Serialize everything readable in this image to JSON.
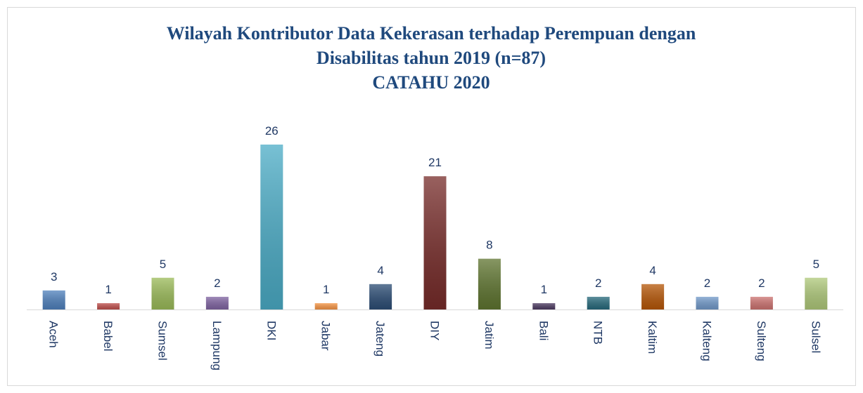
{
  "chart_data": {
    "type": "bar",
    "title": [
      "Wilayah Kontributor Data Kekerasan terhadap Perempuan dengan",
      "Disabilitas tahun 2019 (n=87)",
      "CATAHU 2020"
    ],
    "categories": [
      "Aceh",
      "Babel",
      "Sumsel",
      "Lampung",
      "DKI",
      "Jabar",
      "Jateng",
      "DIY",
      "Jatim",
      "Bali",
      "NTB",
      "Kaltim",
      "Kalteng",
      "Sulteng",
      "Sulsel"
    ],
    "values": [
      3,
      1,
      5,
      2,
      26,
      1,
      4,
      21,
      8,
      1,
      2,
      4,
      2,
      2,
      5
    ],
    "colors": [
      "#4f81bd",
      "#c0504d",
      "#9bbb59",
      "#8064a2",
      "#4bacc6",
      "#f79646",
      "#2c4d75",
      "#772c2a",
      "#5f7530",
      "#4d3b62",
      "#276a7c",
      "#b65708",
      "#729aca",
      "#cd7371",
      "#afc97a"
    ]
  }
}
